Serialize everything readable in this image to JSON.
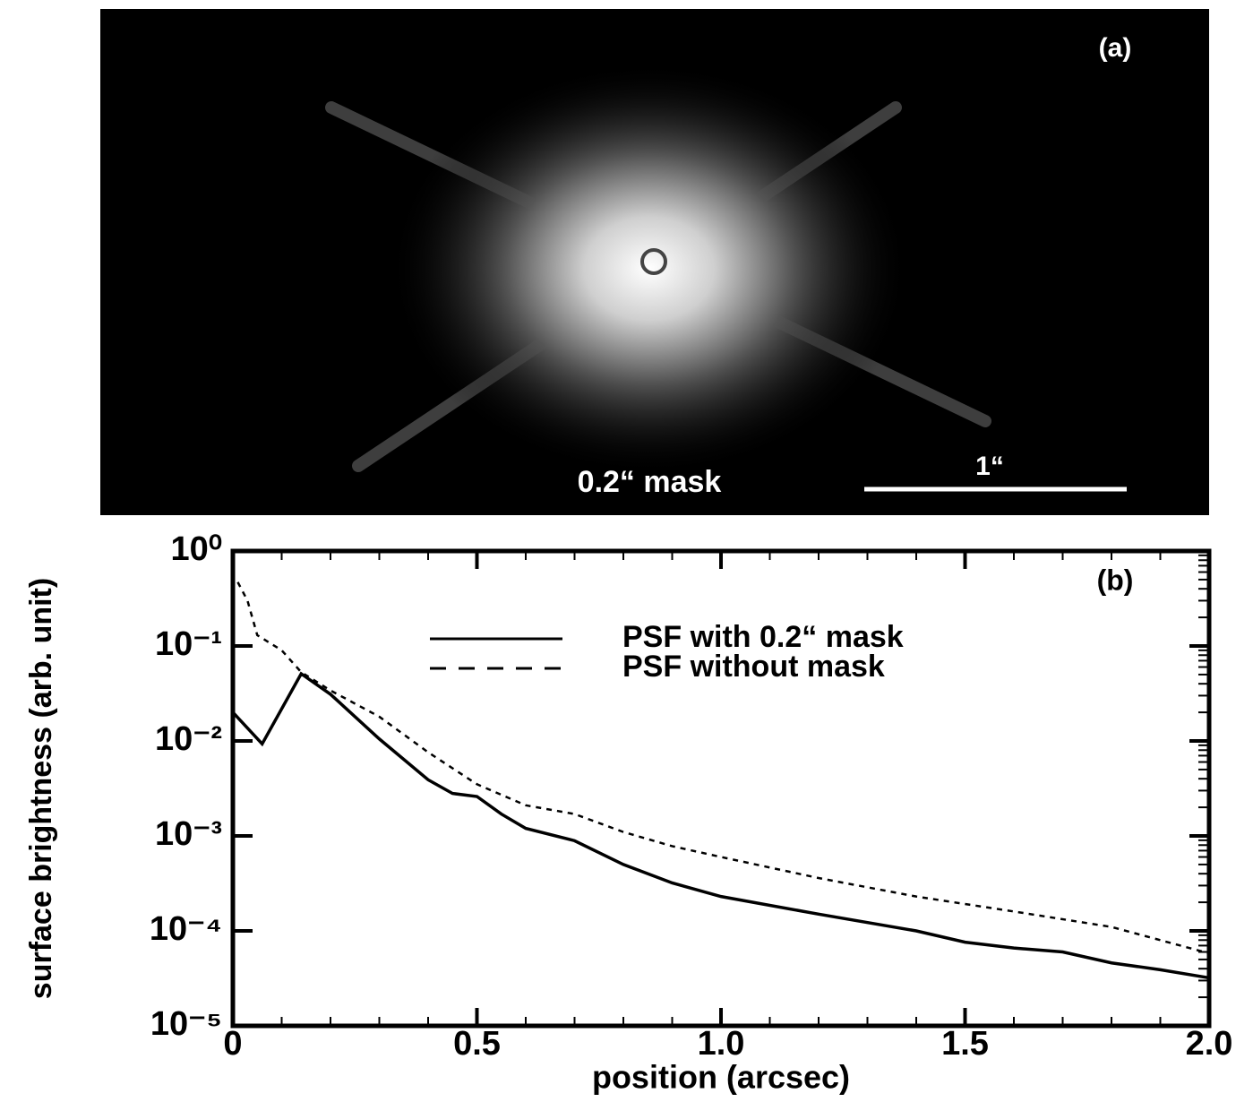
{
  "image_panel": {
    "label": "(a)",
    "mask_label": "0.2“ mask",
    "scale_label": "1“"
  },
  "chart_data": {
    "type": "line",
    "annotation": "(b)",
    "x_label": "position (arcsec)",
    "y_label": "surface brightness (arb. unit)",
    "log_y": true,
    "legend": "top-right",
    "xlim": [
      0,
      2
    ],
    "xticks": [
      0,
      0.5,
      {
        "value": 1,
        "label": "1.0"
      },
      1.5,
      {
        "value": 2,
        "label": "2.0"
      }
    ],
    "ylim": [
      1e-05,
      1
    ],
    "yticks": [
      {
        "value": 1e-05,
        "label": "10⁻⁵"
      },
      {
        "value": 0.0001,
        "label": "10⁻⁴"
      },
      {
        "value": 0.001,
        "label": "10⁻³"
      },
      {
        "value": 0.01,
        "label": "10⁻²"
      },
      {
        "value": 0.1,
        "label": "10⁻¹"
      },
      {
        "value": 1,
        "label": "10⁰"
      }
    ],
    "series": [
      {
        "name": "PSF with 0.2“ mask",
        "color": "#000000",
        "dash": "solid",
        "x": [
          0,
          0.06,
          0.14,
          0.2,
          0.3,
          0.4,
          0.45,
          0.5,
          0.55,
          0.6,
          0.7,
          0.8,
          0.9,
          1.0,
          1.2,
          1.4,
          1.5,
          1.6,
          1.7,
          1.8,
          1.9,
          2.0
        ],
        "values": [
          0.02,
          0.0093,
          0.051,
          0.031,
          0.0105,
          0.0039,
          0.0028,
          0.0026,
          0.0017,
          0.0012,
          0.00089,
          0.0005,
          0.00032,
          0.00023,
          0.00015,
          0.0001,
          7.6e-05,
          6.6e-05,
          6e-05,
          4.6e-05,
          3.9e-05,
          3.2e-05
        ]
      },
      {
        "name": "PSF without mask",
        "color": "#000000",
        "dash": "dashed",
        "x": [
          0.01,
          0.03,
          0.05,
          0.1,
          0.14,
          0.2,
          0.3,
          0.4,
          0.5,
          0.6,
          0.7,
          0.8,
          0.9,
          1.0,
          1.2,
          1.4,
          1.6,
          1.8,
          2.0
        ],
        "values": [
          0.47,
          0.3,
          0.13,
          0.09,
          0.053,
          0.034,
          0.018,
          0.0076,
          0.0035,
          0.0021,
          0.0017,
          0.0011,
          0.00078,
          0.0006,
          0.00036,
          0.00023,
          0.00016,
          0.00011,
          5.8e-05
        ]
      }
    ]
  }
}
